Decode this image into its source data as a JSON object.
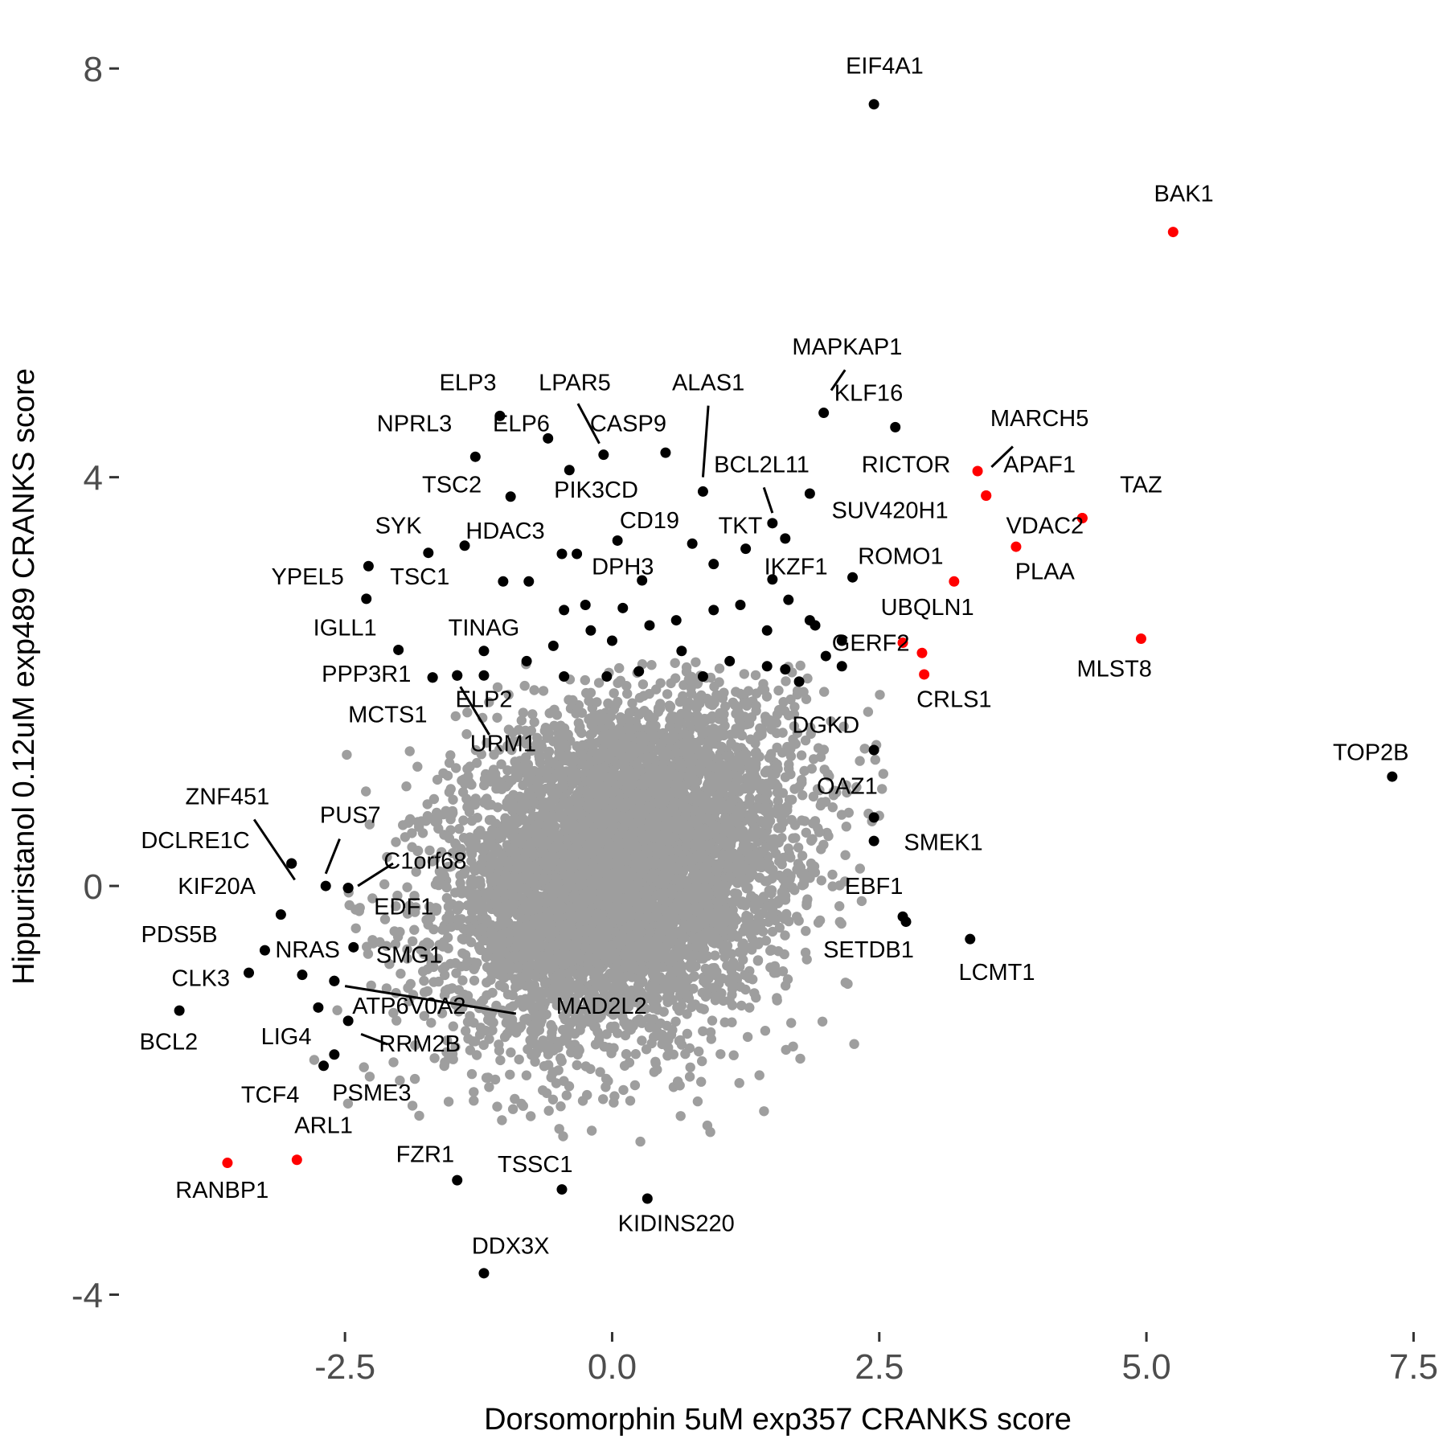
{
  "chart_data": {
    "type": "scatter",
    "title": "",
    "xlabel": "Dorsomorphin 5uM exp357 CRANKS score",
    "ylabel": "Hippuristanol 0.12uM exp489 CRANKS score",
    "xlim": [
      -4.6,
      7.7
    ],
    "ylim": [
      -4.35,
      8.45
    ],
    "x_ticks": [
      -2.5,
      0.0,
      2.5,
      5.0,
      7.5
    ],
    "x_tick_labels": [
      "-2.5",
      "0.0",
      "2.5",
      "5.0",
      "7.5"
    ],
    "y_ticks": [
      -4,
      0,
      4,
      8
    ],
    "y_tick_labels": [
      "-4",
      "0",
      "4",
      "8"
    ],
    "grid": false,
    "colors": {
      "background": "#ffffff",
      "gray": "#9e9e9e",
      "black": "#000000",
      "red": "#ff0000"
    },
    "background_cloud": {
      "approx_points": 6500,
      "center": [
        0.1,
        0.2
      ],
      "sd": [
        0.8,
        0.8
      ],
      "color": "#9e9e9e"
    },
    "points": [
      {
        "label": "EIF4A1",
        "x": 2.45,
        "y": 7.65,
        "color": "black",
        "lx": 2.55,
        "ly": 7.95
      },
      {
        "label": "BAK1",
        "x": 5.25,
        "y": 6.4,
        "color": "red",
        "lx": 5.35,
        "ly": 6.7
      },
      {
        "label": "MAPKAP1",
        "x": 1.98,
        "y": 4.63,
        "color": "black",
        "lx": 2.2,
        "ly": 5.2,
        "seg": [
          2.05,
          4.85,
          2.18,
          5.05
        ]
      },
      {
        "label": "KLF16",
        "x": 2.65,
        "y": 4.49,
        "color": "black",
        "lx": 2.4,
        "ly": 4.75
      },
      {
        "label": "ELP3",
        "x": -1.05,
        "y": 4.6,
        "color": "black",
        "lx": -1.35,
        "ly": 4.85
      },
      {
        "label": "LPAR5",
        "x": -0.08,
        "y": 4.22,
        "color": "black",
        "lx": -0.35,
        "ly": 4.85,
        "seg": [
          -0.32,
          4.72,
          -0.12,
          4.33
        ]
      },
      {
        "label": "ALAS1",
        "x": 0.85,
        "y": 3.86,
        "color": "black",
        "lx": 0.9,
        "ly": 4.85,
        "seg": [
          0.9,
          4.7,
          0.85,
          4.0
        ]
      },
      {
        "label": "NPRL3",
        "x": -1.28,
        "y": 4.2,
        "color": "black",
        "lx": -1.85,
        "ly": 4.45
      },
      {
        "label": "ELP6",
        "x": -0.6,
        "y": 4.38,
        "color": "black",
        "lx": -0.85,
        "ly": 4.45
      },
      {
        "label": "CASP9",
        "x": 0.5,
        "y": 4.24,
        "color": "black",
        "lx": 0.15,
        "ly": 4.45
      },
      {
        "label": "MARCH5",
        "x": 3.5,
        "y": 3.82,
        "color": "red",
        "lx": 4.0,
        "ly": 4.5,
        "seg": [
          3.55,
          4.1,
          3.75,
          4.3
        ]
      },
      {
        "label": "RICTOR",
        "x": 3.42,
        "y": 4.06,
        "color": "red",
        "lx": 2.75,
        "ly": 4.05
      },
      {
        "label": "APAF1",
        "x": 3.5,
        "y": 3.82,
        "color": "red",
        "lx": 4.0,
        "ly": 4.05
      },
      {
        "label": "TSC2",
        "x": -0.95,
        "y": 3.81,
        "color": "black",
        "lx": -1.5,
        "ly": 3.85
      },
      {
        "label": "PIK3CD",
        "x": -0.4,
        "y": 4.07,
        "color": "black",
        "lx": -0.15,
        "ly": 3.8
      },
      {
        "label": "BCL2L11",
        "x": 1.5,
        "y": 3.55,
        "color": "black",
        "lx": 1.4,
        "ly": 4.05,
        "seg": [
          1.42,
          3.9,
          1.5,
          3.65
        ]
      },
      {
        "label": "TAZ",
        "x": 4.4,
        "y": 3.6,
        "color": "red",
        "lx": 4.95,
        "ly": 3.85
      },
      {
        "label": "SUV420H1",
        "x": 1.85,
        "y": 3.84,
        "color": "black",
        "lx": 2.6,
        "ly": 3.6
      },
      {
        "label": "VDAC2",
        "x": 4.4,
        "y": 3.6,
        "color": "red",
        "lx": 4.05,
        "ly": 3.45
      },
      {
        "label": "CD19",
        "x": 0.05,
        "y": 3.38,
        "color": "black",
        "lx": 0.35,
        "ly": 3.5
      },
      {
        "label": "TKT",
        "x": 1.62,
        "y": 3.4,
        "color": "black",
        "lx": 1.2,
        "ly": 3.45
      },
      {
        "label": "SYK",
        "x": -1.72,
        "y": 3.26,
        "color": "black",
        "lx": -2.0,
        "ly": 3.45
      },
      {
        "label": "HDAC3",
        "x": -1.38,
        "y": 3.33,
        "color": "black",
        "lx": -1.0,
        "ly": 3.4
      },
      {
        "label": "PLAA",
        "x": 3.78,
        "y": 3.32,
        "color": "red",
        "lx": 4.05,
        "ly": 3.0
      },
      {
        "label": "ROMO1",
        "x": 3.2,
        "y": 2.98,
        "color": "red",
        "lx": 2.7,
        "ly": 3.15
      },
      {
        "label": "YPEL5",
        "x": -2.28,
        "y": 3.13,
        "color": "black",
        "lx": -2.85,
        "ly": 2.95
      },
      {
        "label": "DPH3",
        "x": 0.28,
        "y": 2.99,
        "color": "black",
        "lx": 0.1,
        "ly": 3.05
      },
      {
        "label": "IKZF1",
        "x": 2.25,
        "y": 3.02,
        "color": "black",
        "lx": 1.72,
        "ly": 3.05
      },
      {
        "label": "TSC1",
        "x": -2.3,
        "y": 2.81,
        "color": "black",
        "lx": -1.8,
        "ly": 2.95
      },
      {
        "label": "UBQLN1",
        "x": 2.9,
        "y": 2.28,
        "color": "red",
        "lx": 2.95,
        "ly": 2.65
      },
      {
        "label": "IGLL1",
        "x": -2.0,
        "y": 2.31,
        "color": "black",
        "lx": -2.5,
        "ly": 2.45
      },
      {
        "label": "TINAG",
        "x": -1.2,
        "y": 2.3,
        "color": "black",
        "lx": -1.2,
        "ly": 2.45
      },
      {
        "label": "GERF2",
        "x": 2.72,
        "y": 2.38,
        "color": "red",
        "lx": 2.42,
        "ly": 2.3
      },
      {
        "label": "MLST8",
        "x": 4.95,
        "y": 2.42,
        "color": "red",
        "lx": 4.7,
        "ly": 2.05
      },
      {
        "label": "PPP3R1",
        "x": -1.68,
        "y": 2.04,
        "color": "black",
        "lx": -2.3,
        "ly": 2.0
      },
      {
        "label": "CRLS1",
        "x": 2.92,
        "y": 2.07,
        "color": "red",
        "lx": 3.2,
        "ly": 1.75
      },
      {
        "label": "ELP2",
        "x": -1.45,
        "y": 2.06,
        "color": "black",
        "lx": -1.2,
        "ly": 1.75,
        "seg": [
          -1.42,
          1.95,
          -1.15,
          1.48
        ]
      },
      {
        "label": "MCTS1",
        "x": -1.68,
        "y": 2.04,
        "color": "black",
        "lx": -2.1,
        "ly": 1.6
      },
      {
        "label": "DGKD",
        "x": 2.45,
        "y": 1.33,
        "color": "black",
        "lx": 2.0,
        "ly": 1.5
      },
      {
        "label": "URM1",
        "x": -1.45,
        "y": 2.06,
        "color": "black",
        "lx": -1.02,
        "ly": 1.32
      },
      {
        "label": "TOP2B",
        "x": 7.3,
        "y": 1.07,
        "color": "black",
        "lx": 7.1,
        "ly": 1.23
      },
      {
        "label": "OAZ1",
        "x": 2.45,
        "y": 0.67,
        "color": "black",
        "lx": 2.2,
        "ly": 0.9
      },
      {
        "label": "ZNF451",
        "x": -3.0,
        "y": 0.22,
        "color": "black",
        "lx": -3.6,
        "ly": 0.8,
        "seg": [
          -3.35,
          0.65,
          -2.97,
          0.06
        ]
      },
      {
        "label": "PUS7",
        "x": -2.68,
        "y": 0.0,
        "color": "black",
        "lx": -2.45,
        "ly": 0.62,
        "seg": [
          -2.55,
          0.46,
          -2.68,
          0.12
        ]
      },
      {
        "label": "SMEK1",
        "x": 2.45,
        "y": 0.44,
        "color": "black",
        "lx": 3.1,
        "ly": 0.35
      },
      {
        "label": "DCLRE1C",
        "x": -3.0,
        "y": 0.22,
        "color": "black",
        "lx": -3.9,
        "ly": 0.37
      },
      {
        "label": "C1orf68",
        "x": -2.47,
        "y": -0.02,
        "color": "black",
        "lx": -1.75,
        "ly": 0.17,
        "seg": [
          -2.38,
          0.0,
          -2.05,
          0.22
        ]
      },
      {
        "label": "KIF20A",
        "x": -3.1,
        "y": -0.28,
        "color": "black",
        "lx": -3.7,
        "ly": -0.08
      },
      {
        "label": "EBF1",
        "x": 2.72,
        "y": -0.3,
        "color": "black",
        "lx": 2.45,
        "ly": -0.08
      },
      {
        "label": "EDF1",
        "x": -2.47,
        "y": -0.02,
        "color": "black",
        "lx": -1.95,
        "ly": -0.28
      },
      {
        "label": "PDS5B",
        "x": -3.25,
        "y": -0.63,
        "color": "black",
        "lx": -4.05,
        "ly": -0.55
      },
      {
        "label": "LCMT1",
        "x": 3.35,
        "y": -0.52,
        "color": "black",
        "lx": 3.6,
        "ly": -0.92
      },
      {
        "label": "NRAS",
        "x": -2.9,
        "y": -0.87,
        "color": "black",
        "lx": -2.85,
        "ly": -0.7
      },
      {
        "label": "SETDB1",
        "x": 2.75,
        "y": -0.35,
        "color": "black",
        "lx": 2.4,
        "ly": -0.7
      },
      {
        "label": "SMG1",
        "x": -2.42,
        "y": -0.6,
        "color": "black",
        "lx": -1.9,
        "ly": -0.75
      },
      {
        "label": "CLK3",
        "x": -3.4,
        "y": -0.85,
        "color": "black",
        "lx": -3.85,
        "ly": -0.98
      },
      {
        "label": "ATP6V0A2",
        "x": -2.6,
        "y": -0.93,
        "color": "black",
        "lx": -1.9,
        "ly": -1.25,
        "seg": [
          -2.5,
          -0.98,
          -0.9,
          -1.25
        ]
      },
      {
        "label": "MAD2L2",
        "x": -2.6,
        "y": -0.93,
        "color": "black",
        "lx": -0.1,
        "ly": -1.25
      },
      {
        "label": "BCL2",
        "x": -4.05,
        "y": -1.22,
        "color": "black",
        "lx": -4.15,
        "ly": -1.6
      },
      {
        "label": "LIG4",
        "x": -2.75,
        "y": -1.19,
        "color": "black",
        "lx": -3.05,
        "ly": -1.55
      },
      {
        "label": "RRM2B",
        "x": -2.47,
        "y": -1.32,
        "color": "black",
        "lx": -1.8,
        "ly": -1.62,
        "seg": [
          -2.35,
          -1.45,
          -2.1,
          -1.55
        ]
      },
      {
        "label": "TCF4",
        "x": -2.7,
        "y": -1.76,
        "color": "black",
        "lx": -3.2,
        "ly": -2.12
      },
      {
        "label": "PSME3",
        "x": -2.6,
        "y": -1.65,
        "color": "black",
        "lx": -2.25,
        "ly": -2.1
      },
      {
        "label": "ARL1",
        "x": -2.95,
        "y": -2.68,
        "color": "red",
        "lx": -2.7,
        "ly": -2.42
      },
      {
        "label": "FZR1",
        "x": -1.45,
        "y": -2.88,
        "color": "black",
        "lx": -1.75,
        "ly": -2.7
      },
      {
        "label": "TSSC1",
        "x": -0.47,
        "y": -2.97,
        "color": "black",
        "lx": -0.72,
        "ly": -2.8
      },
      {
        "label": "RANBP1",
        "x": -3.6,
        "y": -2.71,
        "color": "red",
        "lx": -3.65,
        "ly": -3.05
      },
      {
        "label": "KIDINS220",
        "x": 0.33,
        "y": -3.06,
        "color": "black",
        "lx": 0.6,
        "ly": -3.38
      },
      {
        "label": "DDX3X",
        "x": -1.2,
        "y": -3.79,
        "color": "black",
        "lx": -0.95,
        "ly": -3.6
      }
    ],
    "unlabeled_points": [
      {
        "x": -0.47,
        "y": 3.25,
        "color": "black"
      },
      {
        "x": -0.33,
        "y": 3.25,
        "color": "black"
      },
      {
        "x": -1.02,
        "y": 2.98,
        "color": "black"
      },
      {
        "x": -0.78,
        "y": 2.98,
        "color": "black"
      },
      {
        "x": -0.45,
        "y": 2.7,
        "color": "black"
      },
      {
        "x": -0.25,
        "y": 2.75,
        "color": "black"
      },
      {
        "x": 0.1,
        "y": 2.72,
        "color": "black"
      },
      {
        "x": -0.55,
        "y": 2.35,
        "color": "black"
      },
      {
        "x": -0.2,
        "y": 2.5,
        "color": "black"
      },
      {
        "x": 0.0,
        "y": 2.4,
        "color": "black"
      },
      {
        "x": 0.35,
        "y": 2.55,
        "color": "black"
      },
      {
        "x": 0.6,
        "y": 2.6,
        "color": "black"
      },
      {
        "x": 0.75,
        "y": 3.35,
        "color": "black"
      },
      {
        "x": 0.95,
        "y": 3.15,
        "color": "black"
      },
      {
        "x": 1.25,
        "y": 3.3,
        "color": "black"
      },
      {
        "x": 1.5,
        "y": 3.0,
        "color": "black"
      },
      {
        "x": 0.95,
        "y": 2.7,
        "color": "black"
      },
      {
        "x": 1.2,
        "y": 2.75,
        "color": "black"
      },
      {
        "x": 1.45,
        "y": 2.5,
        "color": "black"
      },
      {
        "x": 1.65,
        "y": 2.8,
        "color": "black"
      },
      {
        "x": 1.85,
        "y": 2.6,
        "color": "black"
      },
      {
        "x": 2.0,
        "y": 2.25,
        "color": "black"
      },
      {
        "x": 2.15,
        "y": 2.15,
        "color": "black"
      },
      {
        "x": 1.75,
        "y": 2.0,
        "color": "black"
      },
      {
        "x": 0.65,
        "y": 2.3,
        "color": "black"
      },
      {
        "x": 0.85,
        "y": 2.05,
        "color": "black"
      },
      {
        "x": 1.1,
        "y": 2.2,
        "color": "black"
      },
      {
        "x": -0.8,
        "y": 2.2,
        "color": "black"
      },
      {
        "x": -0.45,
        "y": 2.05,
        "color": "black"
      },
      {
        "x": -0.05,
        "y": 2.05,
        "color": "black"
      },
      {
        "x": 0.25,
        "y": 2.1,
        "color": "black"
      },
      {
        "x": -1.2,
        "y": 2.06,
        "color": "black"
      },
      {
        "x": 1.45,
        "y": 2.15,
        "color": "black"
      },
      {
        "x": 1.62,
        "y": 2.12,
        "color": "black"
      },
      {
        "x": 1.9,
        "y": 2.55,
        "color": "black"
      },
      {
        "x": 2.15,
        "y": 2.4,
        "color": "black"
      }
    ]
  }
}
